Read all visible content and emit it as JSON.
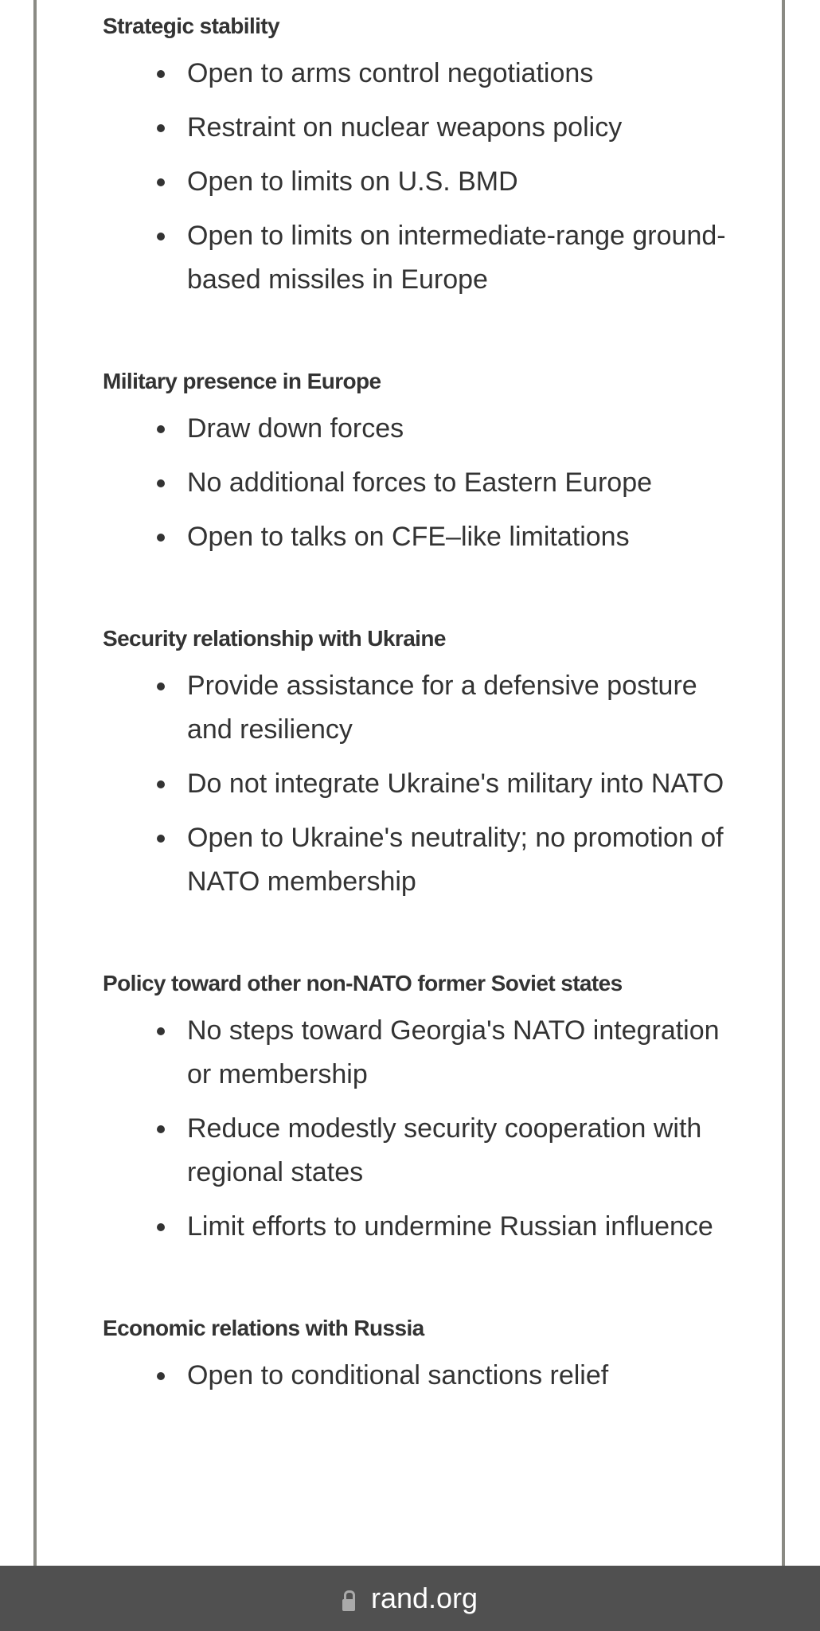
{
  "sections": [
    {
      "heading": "Strategic stability",
      "items": [
        "Open to arms control negotiations",
        "Restraint on nuclear weapons policy",
        "Open to limits on U.S. BMD",
        "Open to limits on intermediate-range ground-based missiles in Europe"
      ]
    },
    {
      "heading": "Military presence in Europe",
      "items": [
        "Draw down forces",
        "No additional forces to Eastern Europe",
        "Open to talks on CFE–like limitations"
      ]
    },
    {
      "heading": "Security relationship with Ukraine",
      "items": [
        "Provide assistance for a defensive posture and resiliency",
        "Do not integrate Ukraine's military into NATO",
        "Open to Ukraine's neutrality; no promotion of NATO membership"
      ]
    },
    {
      "heading": "Policy toward other non-NATO former Soviet states",
      "items": [
        "No steps toward Georgia's NATO integration or membership",
        "Reduce modestly security cooperation with regional states",
        "Limit efforts to undermine Russian influence"
      ]
    },
    {
      "heading": "Economic relations with Russia",
      "items": [
        "Open to conditional sanctions relief"
      ]
    }
  ],
  "browser_bar": {
    "url": "rand.org",
    "icon": "lock-icon"
  }
}
